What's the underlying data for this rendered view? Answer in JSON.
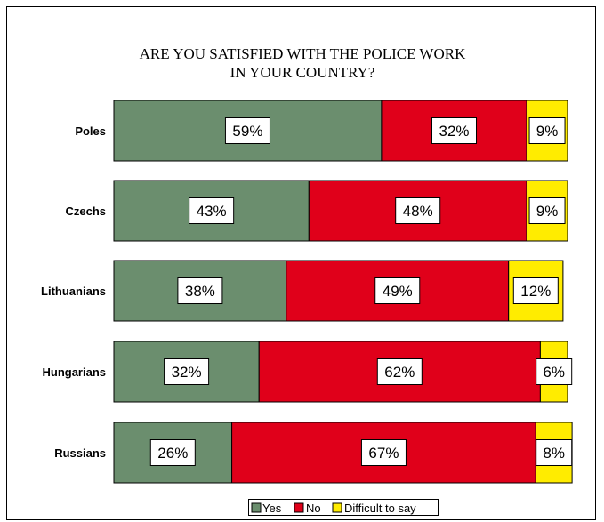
{
  "chart_data": {
    "type": "bar",
    "orientation": "horizontal",
    "stacked": true,
    "title_lines": [
      "ARE YOU SATISFIED WITH THE POLICE WORK",
      "IN YOUR COUNTRY?"
    ],
    "categories": [
      "Poles",
      "Czechs",
      "Lithuanians",
      "Hungarians",
      "Russians"
    ],
    "series": [
      {
        "name": "Yes",
        "values": [
          59,
          43,
          38,
          32,
          26
        ],
        "labels": [
          "59%",
          "43%",
          "38%",
          "32%",
          "26%"
        ],
        "color": "#6b8e6e"
      },
      {
        "name": "No",
        "values": [
          32,
          48,
          49,
          62,
          67
        ],
        "labels": [
          "32%",
          "48%",
          "49%",
          "62%",
          "67%"
        ],
        "color": "#e0001a"
      },
      {
        "name": "Difficult to say",
        "values": [
          9,
          9,
          12,
          6,
          8
        ],
        "labels": [
          "9%",
          "9%",
          "12%",
          "6%",
          "8%"
        ],
        "color": "#ffec00"
      }
    ],
    "xlim": [
      0,
      100
    ],
    "grid": false,
    "legend_position": "bottom"
  }
}
